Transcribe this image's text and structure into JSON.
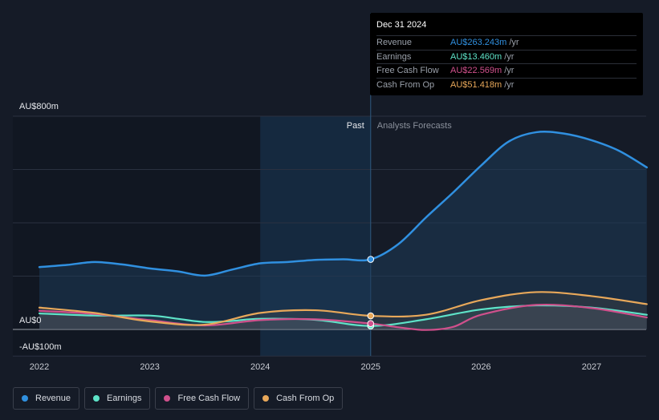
{
  "chart_data": {
    "type": "line",
    "y_unit_labels": {
      "top": "AU$800m",
      "zero": "AU$0",
      "bottom": "-AU$100m"
    },
    "ylim": [
      -100,
      800
    ],
    "xlim": [
      2022.0,
      2027.5
    ],
    "x_ticks": [
      "2022",
      "2023",
      "2024",
      "2025",
      "2026",
      "2027"
    ],
    "divider": {
      "x": 2025.0,
      "past_label": "Past",
      "forecast_label": "Analysts Forecasts"
    },
    "grid": true,
    "series": [
      {
        "name": "Revenue",
        "color": "#3090e0",
        "x": [
          2022.0,
          2022.25,
          2022.5,
          2022.75,
          2023.0,
          2023.25,
          2023.5,
          2023.75,
          2024.0,
          2024.25,
          2024.5,
          2024.75,
          2025.0,
          2025.25,
          2025.5,
          2025.75,
          2026.0,
          2026.25,
          2026.5,
          2026.75,
          2027.0,
          2027.25,
          2027.5
        ],
        "y": [
          234,
          242,
          253,
          244,
          229,
          218,
          202,
          225,
          248,
          253,
          261,
          263,
          263,
          320,
          420,
          515,
          615,
          705,
          740,
          735,
          710,
          670,
          608
        ]
      },
      {
        "name": "Earnings",
        "color": "#5ee3c8",
        "x": [
          2022.0,
          2022.5,
          2023.0,
          2023.25,
          2023.5,
          2023.75,
          2024.0,
          2024.5,
          2025.0,
          2025.5,
          2026.0,
          2026.5,
          2027.0,
          2027.5
        ],
        "y": [
          60,
          52,
          52,
          40,
          28,
          32,
          40,
          36,
          13,
          38,
          75,
          90,
          82,
          55
        ]
      },
      {
        "name": "Free Cash Flow",
        "color": "#d0508c",
        "x": [
          2022.0,
          2022.5,
          2023.0,
          2023.5,
          2024.0,
          2024.5,
          2025.0,
          2025.25,
          2025.5,
          2025.75,
          2026.0,
          2026.5,
          2027.0,
          2027.5
        ],
        "y": [
          70,
          58,
          35,
          15,
          35,
          38,
          22,
          8,
          -2,
          10,
          55,
          92,
          80,
          45
        ]
      },
      {
        "name": "Cash From Op",
        "color": "#e8a85a",
        "x": [
          2022.0,
          2022.5,
          2023.0,
          2023.5,
          2024.0,
          2024.5,
          2025.0,
          2025.5,
          2026.0,
          2026.5,
          2027.0,
          2027.5
        ],
        "y": [
          82,
          62,
          30,
          18,
          62,
          72,
          51,
          55,
          110,
          140,
          125,
          95
        ]
      }
    ]
  },
  "tooltip": {
    "date": "Dec 31 2024",
    "rows": [
      {
        "name": "Revenue",
        "value": "AU$263.243m",
        "unit": "/yr",
        "color": "#3090e0"
      },
      {
        "name": "Earnings",
        "value": "AU$13.460m",
        "unit": "/yr",
        "color": "#5ee3c8"
      },
      {
        "name": "Free Cash Flow",
        "value": "AU$22.569m",
        "unit": "/yr",
        "color": "#d0508c"
      },
      {
        "name": "Cash From Op",
        "value": "AU$51.418m",
        "unit": "/yr",
        "color": "#e8a85a"
      }
    ]
  },
  "legend": [
    {
      "label": "Revenue",
      "color": "#3090e0"
    },
    {
      "label": "Earnings",
      "color": "#5ee3c8"
    },
    {
      "label": "Free Cash Flow",
      "color": "#d0508c"
    },
    {
      "label": "Cash From Op",
      "color": "#e8a85a"
    }
  ]
}
